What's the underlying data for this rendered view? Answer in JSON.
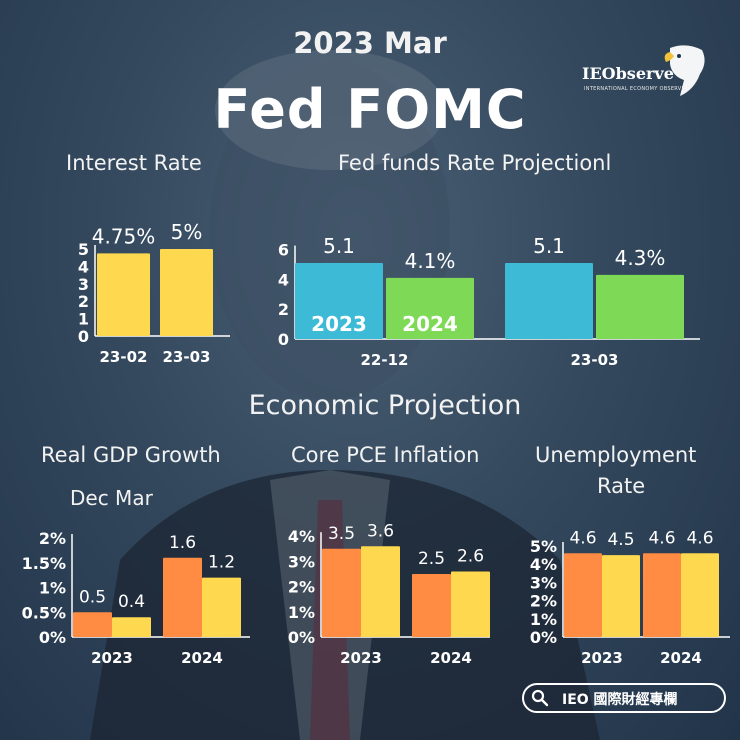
{
  "header": {
    "date": "2023 Mar",
    "title": "Fed FOMC"
  },
  "brand": {
    "name": "IEObserve",
    "tagline": "INTERNATIONAL ECONOMY OBSERVE"
  },
  "sections": {
    "economic_projection": "Economic Projection",
    "unemployment_line1": "Unemployment",
    "unemployment_line2": "Rate",
    "dec_mar": "Dec Mar"
  },
  "footer": {
    "search_label": "IEO 國際財經專欄"
  },
  "colors": {
    "yellow": "#fed84f",
    "blue": "#3dbad6",
    "green": "#7ed957",
    "orange": "#ff8c42",
    "axis": "#ffffff"
  },
  "chart_data": [
    {
      "id": "interest-rate",
      "type": "bar",
      "title": "Interest Rate",
      "categories": [
        "23-02",
        "23-03"
      ],
      "values": [
        4.75,
        5
      ],
      "labels": [
        "4.75%",
        "5%"
      ],
      "yticks": [
        "0",
        "1",
        "2",
        "3",
        "4",
        "5"
      ],
      "ylim": [
        0,
        5
      ]
    },
    {
      "id": "fed-funds-projection",
      "type": "bar",
      "title": "Fed funds Rate Projectionl",
      "categories": [
        "22-12",
        "23-03"
      ],
      "series": [
        {
          "name": "2023",
          "values": [
            5.1,
            5.1
          ],
          "labels": [
            "5.1",
            "5.1"
          ]
        },
        {
          "name": "2024",
          "values": [
            4.1,
            4.3
          ],
          "labels": [
            "4.1%",
            "4.3%"
          ]
        }
      ],
      "yticks": [
        "0",
        "2",
        "4",
        "6"
      ],
      "ylim": [
        0,
        6
      ]
    },
    {
      "id": "real-gdp",
      "type": "bar",
      "title": "Real GDP Growth",
      "categories": [
        "2023",
        "2024"
      ],
      "series": [
        {
          "name": "Dec",
          "values": [
            0.5,
            1.6
          ],
          "labels": [
            "0.5",
            "1.6"
          ]
        },
        {
          "name": "Mar",
          "values": [
            0.4,
            1.2
          ],
          "labels": [
            "0.4",
            "1.2"
          ]
        }
      ],
      "yticks": [
        "0%",
        "0.5%",
        "1%",
        "1.5%",
        "2%"
      ],
      "ylim": [
        0,
        2
      ]
    },
    {
      "id": "core-pce",
      "type": "bar",
      "title": "Core PCE Inflation",
      "categories": [
        "2023",
        "2024"
      ],
      "series": [
        {
          "name": "Dec",
          "values": [
            3.5,
            2.5
          ],
          "labels": [
            "3.5",
            "2.5"
          ]
        },
        {
          "name": "Mar",
          "values": [
            3.6,
            2.6
          ],
          "labels": [
            "3.6",
            "2.6"
          ]
        }
      ],
      "yticks": [
        "0%",
        "1%",
        "2%",
        "3%",
        "4%"
      ],
      "ylim": [
        0,
        4
      ]
    },
    {
      "id": "unemployment",
      "type": "bar",
      "title": "Unemployment Rate",
      "categories": [
        "2023",
        "2024"
      ],
      "series": [
        {
          "name": "Dec",
          "values": [
            4.6,
            4.6
          ],
          "labels": [
            "4.6",
            "4.6"
          ]
        },
        {
          "name": "Mar",
          "values": [
            4.5,
            4.6
          ],
          "labels": [
            "4.5",
            "4.6"
          ]
        }
      ],
      "yticks": [
        "0%",
        "1%",
        "2%",
        "3%",
        "4%",
        "5%"
      ],
      "ylim": [
        0,
        5
      ]
    }
  ]
}
